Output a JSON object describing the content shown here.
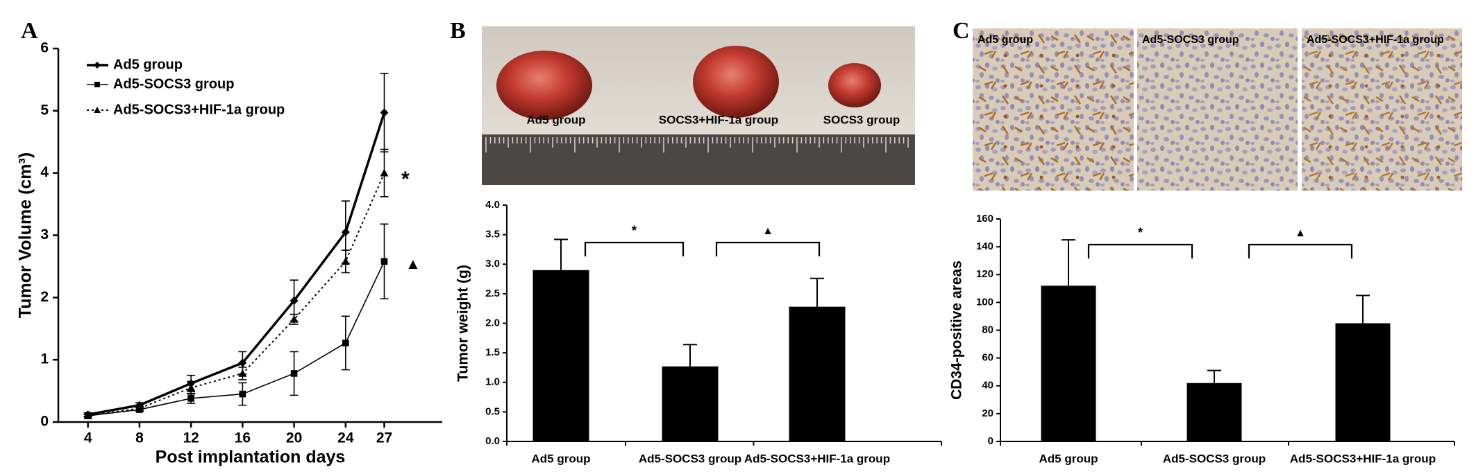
{
  "chart_data": [
    {
      "type": "line",
      "panel": "A",
      "xlabel": "Post implantation days",
      "ylabel": "Tumor Volume (cm³)",
      "x": [
        4,
        8,
        12,
        16,
        20,
        24,
        27
      ],
      "xlim": [
        1.7,
        31.5
      ],
      "xticks": [
        4,
        8,
        12,
        16,
        20,
        24,
        27
      ],
      "ylim": [
        0,
        6
      ],
      "yticks": [
        0,
        1,
        2,
        3,
        4,
        5,
        6
      ],
      "series": [
        {
          "name": "Ad5 group",
          "color": "#000000",
          "marker": "diamond",
          "line_style": "thick",
          "values": [
            0.12,
            0.27,
            0.62,
            0.95,
            1.95,
            3.05,
            4.97
          ],
          "errors": [
            0.03,
            0.04,
            0.13,
            0.18,
            0.33,
            0.5,
            0.63
          ]
        },
        {
          "name": "Ad5-SOCS3 group",
          "color": "#000000",
          "marker": "square",
          "line_style": "solid",
          "values": [
            0.1,
            0.2,
            0.38,
            0.45,
            0.78,
            1.27,
            2.58
          ],
          "errors": [
            0.02,
            0.03,
            0.08,
            0.18,
            0.35,
            0.43,
            0.6
          ]
        },
        {
          "name": "Ad5-SOCS3+HIF-1a group",
          "color": "#000000",
          "marker": "triangle",
          "line_style": "dotted",
          "values": [
            0.1,
            0.22,
            0.55,
            0.78,
            1.65,
            2.58,
            4.0
          ],
          "errors": [
            0.02,
            0.03,
            0.1,
            0.1,
            0.08,
            0.18,
            0.38
          ]
        }
      ],
      "annotations": [
        "*",
        "▲"
      ]
    },
    {
      "type": "bar",
      "panel": "B",
      "image_labels": [
        "Ad5 group",
        "SOCS3+HIF-1a group",
        "SOCS3 group"
      ],
      "ylabel": "Tumor weight (g)",
      "categories": [
        "Ad5 group",
        "Ad5-SOCS3 group",
        "Ad5-SOCS3+HIF-1a group"
      ],
      "values": [
        2.9,
        1.27,
        2.28
      ],
      "errors": [
        0.52,
        0.37,
        0.48
      ],
      "color": "#000000",
      "ylim": [
        0,
        4
      ],
      "yticks": [
        {
          "value": 0,
          "label": "0.0"
        },
        0.5,
        {
          "value": 1,
          "label": "1.0"
        },
        1.5,
        {
          "value": 2,
          "label": "2.0"
        },
        2.5,
        {
          "value": 3,
          "label": "3.0"
        },
        3.5,
        {
          "value": 4,
          "label": "4.0"
        }
      ],
      "annotations": [
        "*",
        "▲"
      ]
    },
    {
      "type": "bar",
      "panel": "C",
      "image_labels": [
        "Ad5 group",
        "Ad5-SOCS3 group",
        "Ad5-SOCS3+HIF-1a group"
      ],
      "ylabel": "CD34-positive areas",
      "categories": [
        "Ad5 group",
        "Ad5-SOCS3 group",
        "Ad5-SOCS3+HIF-1a group"
      ],
      "values": [
        112,
        42,
        85
      ],
      "errors": [
        33,
        9,
        20
      ],
      "color": "#000000",
      "ylim": [
        0,
        160
      ],
      "yticks": [
        0,
        20,
        40,
        60,
        80,
        100,
        120,
        140,
        160
      ],
      "annotations": [
        "*",
        "▲"
      ]
    }
  ]
}
